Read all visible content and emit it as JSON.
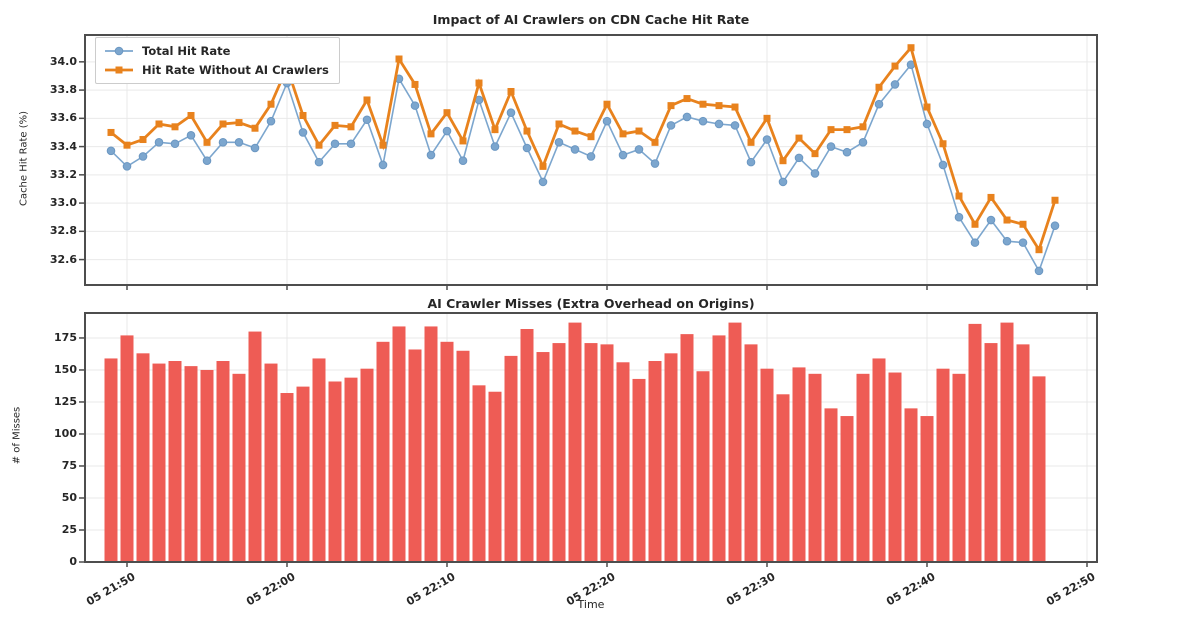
{
  "figure": {
    "background": "#ffffff"
  },
  "colors": {
    "total_hit_rate": "#7ca6ce",
    "total_hit_rate_edge": "#6b97c2",
    "without_crawlers": "#e8821d",
    "bars": "#ee5c55",
    "grid": "#e9e9e9",
    "spine": "#4d4d4d",
    "text": "#262626"
  },
  "chart_data": [
    {
      "type": "line",
      "title": "Impact of AI Crawlers on CDN Cache Hit Rate",
      "ylabel": "Cache Hit Rate (%)",
      "ylim": [
        32.42,
        34.19
      ],
      "y_ticks": [
        32.6,
        32.8,
        33.0,
        33.2,
        33.4,
        33.6,
        33.8,
        34.0
      ],
      "y_tick_labels": [
        "32.6",
        "32.8",
        "33.0",
        "33.2",
        "33.4",
        "33.6",
        "33.8",
        "34.0"
      ],
      "x_tick_minutes": [
        1,
        11,
        21,
        31,
        41,
        51,
        61
      ],
      "grid": "on",
      "legend_position": "upper left",
      "series": [
        {
          "name": "Total Hit Rate",
          "marker": "circle",
          "values": [
            33.37,
            33.26,
            33.33,
            33.43,
            33.42,
            33.48,
            33.3,
            33.43,
            33.43,
            33.39,
            33.58,
            33.85,
            33.5,
            33.29,
            33.42,
            33.42,
            33.59,
            33.27,
            33.88,
            33.69,
            33.34,
            33.51,
            33.3,
            33.73,
            33.4,
            33.64,
            33.39,
            33.15,
            33.43,
            33.38,
            33.33,
            33.58,
            33.34,
            33.38,
            33.28,
            33.55,
            33.61,
            33.58,
            33.56,
            33.55,
            33.29,
            33.45,
            33.15,
            33.32,
            33.21,
            33.4,
            33.36,
            33.43,
            33.7,
            33.84,
            33.98,
            33.56,
            33.27,
            32.9,
            32.72,
            32.88,
            32.73,
            32.72,
            32.52,
            32.84
          ]
        },
        {
          "name": "Hit Rate Without AI Crawlers",
          "marker": "square",
          "values": [
            33.5,
            33.41,
            33.45,
            33.56,
            33.54,
            33.62,
            33.43,
            33.56,
            33.57,
            33.53,
            33.7,
            33.96,
            33.62,
            33.41,
            33.55,
            33.54,
            33.73,
            33.41,
            34.02,
            33.84,
            33.49,
            33.64,
            33.44,
            33.85,
            33.52,
            33.79,
            33.51,
            33.26,
            33.56,
            33.51,
            33.47,
            33.7,
            33.49,
            33.51,
            33.43,
            33.69,
            33.74,
            33.7,
            33.69,
            33.68,
            33.43,
            33.6,
            33.3,
            33.46,
            33.35,
            33.52,
            33.52,
            33.54,
            33.82,
            33.97,
            34.1,
            33.68,
            33.42,
            33.05,
            32.85,
            33.04,
            32.88,
            32.85,
            32.67,
            33.02
          ]
        }
      ]
    },
    {
      "type": "bar",
      "title": "AI Crawler Misses (Extra Overhead on Origins)",
      "ylabel": "# of Misses",
      "xlabel": "Time",
      "ylim": [
        0,
        194.5
      ],
      "y_ticks": [
        0,
        25,
        50,
        75,
        100,
        125,
        150,
        175
      ],
      "y_tick_labels": [
        "0",
        "25",
        "50",
        "75",
        "100",
        "125",
        "150",
        "175"
      ],
      "x_tick_minutes": [
        1,
        11,
        21,
        31,
        41,
        51,
        61
      ],
      "x_tick_labels": [
        "05 21:50",
        "05 22:00",
        "05 22:10",
        "05 22:20",
        "05 22:30",
        "05 22:40",
        "05 22:50"
      ],
      "grid": "on",
      "values": [
        159,
        177,
        163,
        155,
        157,
        153,
        150,
        157,
        147,
        180,
        155,
        132,
        137,
        159,
        141,
        144,
        151,
        172,
        184,
        166,
        184,
        172,
        165,
        138,
        133,
        161,
        182,
        164,
        171,
        187,
        171,
        170,
        156,
        143,
        157,
        163,
        178,
        149,
        177,
        187,
        170,
        151,
        131,
        152,
        147,
        120,
        114,
        147,
        159,
        148,
        120,
        114,
        151,
        147,
        186,
        171,
        187,
        170,
        145
      ]
    }
  ]
}
